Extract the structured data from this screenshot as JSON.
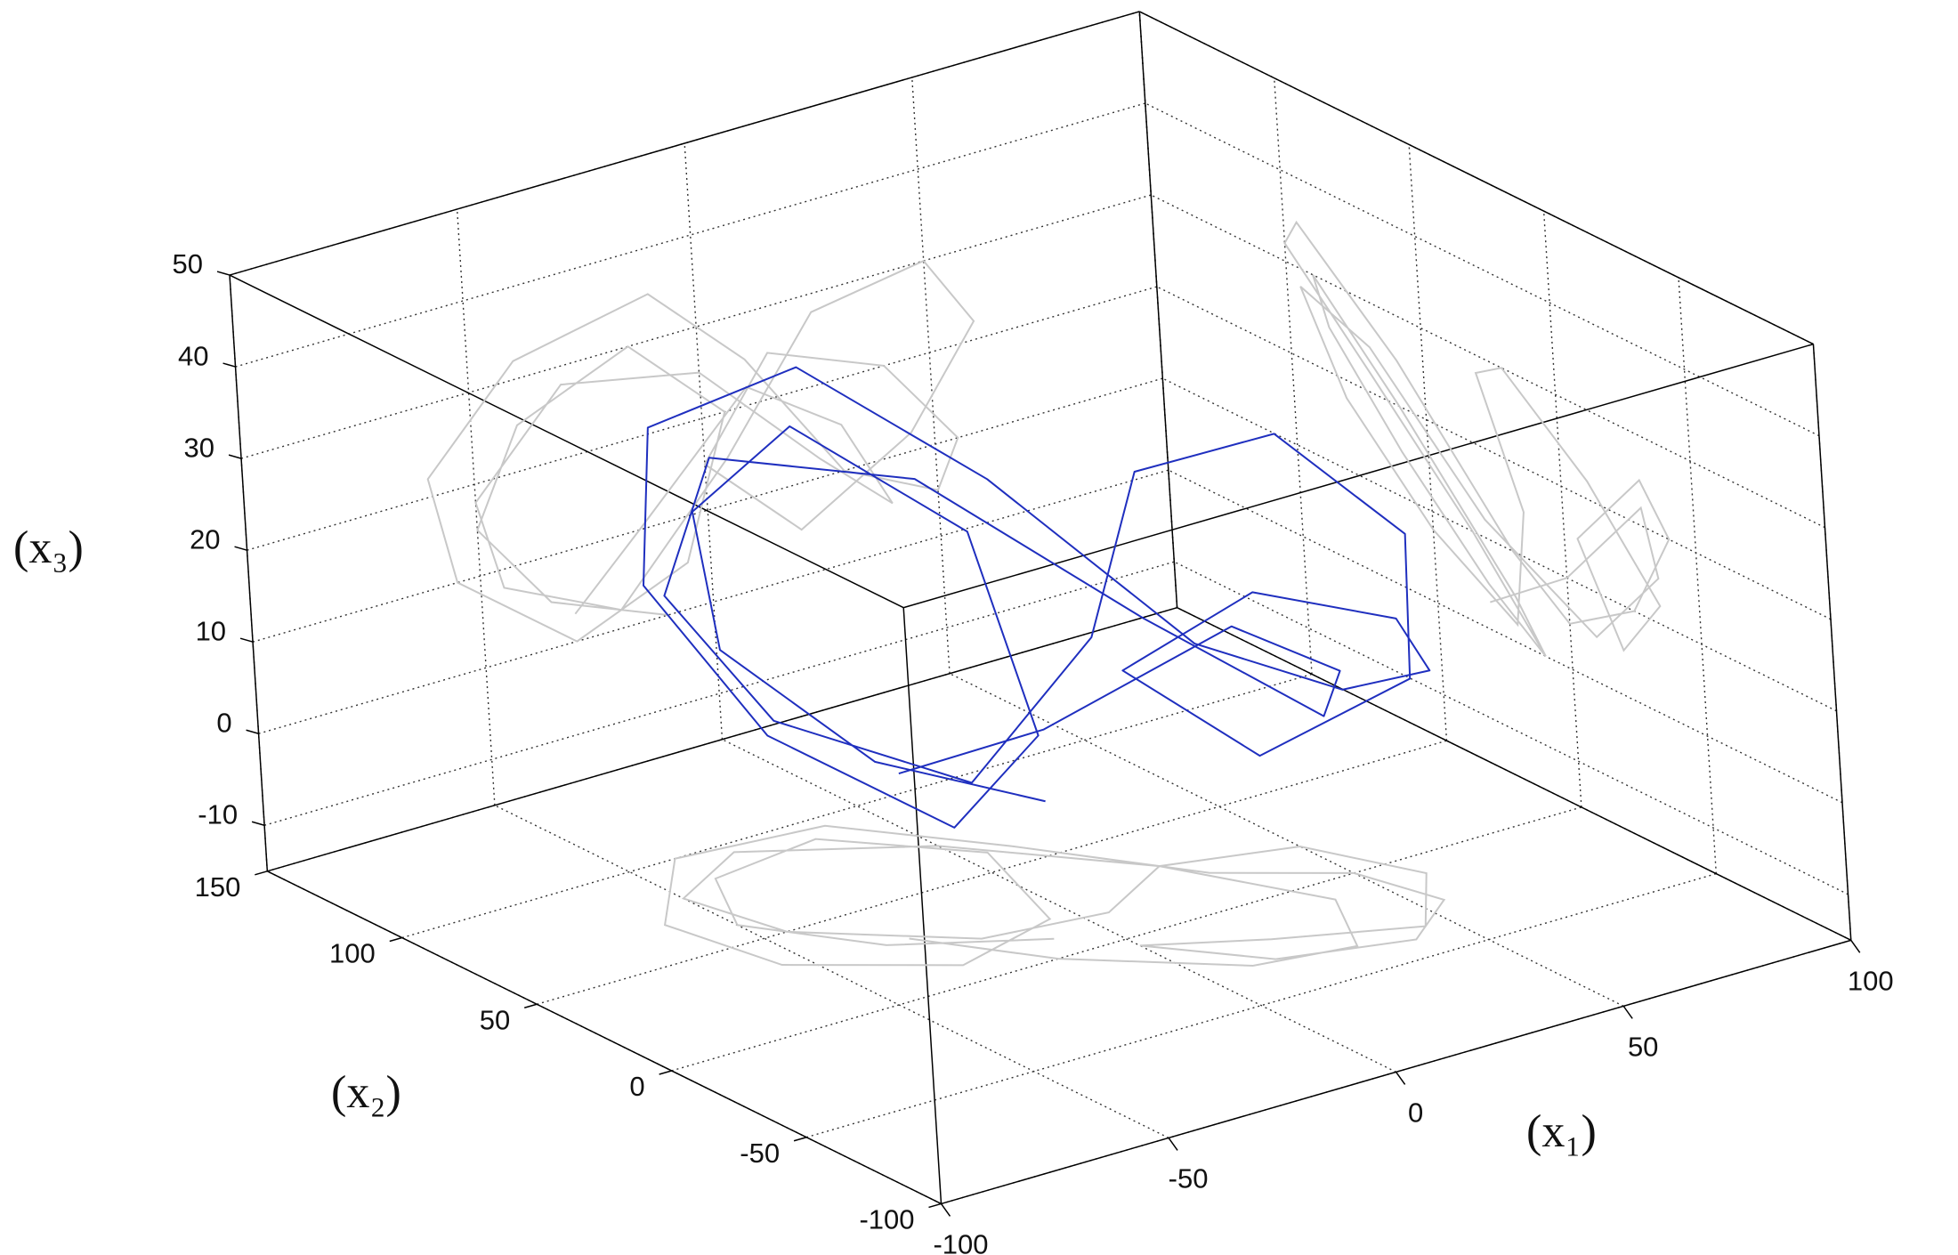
{
  "chart_data": {
    "type": "line3d",
    "xlabel": "(x₁)",
    "ylabel": "(x₂)",
    "zlabel": "(x₃)",
    "xlim": [
      -100,
      100
    ],
    "ylim": [
      -100,
      150
    ],
    "zlim": [
      -15,
      50
    ],
    "xticks": [
      -100,
      -50,
      0,
      50,
      100
    ],
    "yticks": [
      -100,
      -50,
      0,
      50,
      100,
      150
    ],
    "zticks": [
      -10,
      0,
      10,
      20,
      30,
      40,
      50
    ],
    "grid": true,
    "projection_color": "#c8c8c8",
    "series": [
      {
        "color": "#1f2fbf",
        "x1": [
          -10,
          -35,
          -50,
          -40,
          -15,
          5,
          -5,
          -30,
          -55,
          -60,
          -40,
          -10,
          10,
          30,
          50,
          55,
          40,
          15,
          0,
          20,
          45,
          60,
          50,
          25,
          5,
          -20,
          -45,
          -50,
          -30,
          0,
          25,
          40,
          30,
          10,
          -15,
          -30
        ],
        "x2": [
          10,
          30,
          60,
          85,
          90,
          60,
          20,
          10,
          35,
          70,
          100,
          95,
          60,
          20,
          0,
          -25,
          -40,
          -30,
          -5,
          -20,
          -35,
          -10,
          20,
          30,
          15,
          20,
          50,
          80,
          95,
          70,
          30,
          -10,
          -35,
          -30,
          0,
          30
        ],
        "x3": [
          0,
          5,
          15,
          25,
          30,
          20,
          5,
          0,
          10,
          22,
          32,
          35,
          25,
          10,
          5,
          10,
          20,
          25,
          15,
          5,
          12,
          22,
          30,
          28,
          15,
          2,
          8,
          18,
          28,
          25,
          12,
          5,
          15,
          22,
          10,
          3
        ]
      }
    ]
  }
}
